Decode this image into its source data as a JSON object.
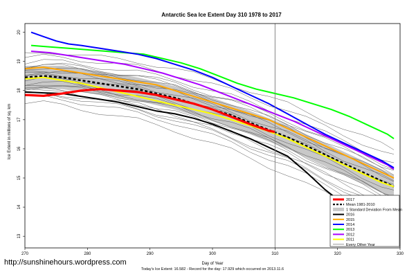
{
  "chart_data": {
    "type": "line",
    "title": "Antarctic Sea Ice Extent Day 310 1978 to 2017",
    "xlabel": "Day of Year",
    "ylabel": "Ice Extent in millions of sq. km",
    "xlim": [
      270,
      330
    ],
    "ylim": [
      12.6,
      20.3
    ],
    "x_ticks": [
      270,
      280,
      290,
      300,
      310,
      320,
      330
    ],
    "y_ticks": [
      13,
      14,
      15,
      16,
      17,
      18,
      19,
      20
    ],
    "current_day": 310,
    "series": [
      {
        "name": "2017",
        "color": "#ff0000",
        "points": [
          [
            270,
            17.85
          ],
          [
            273,
            17.82
          ],
          [
            276,
            17.9
          ],
          [
            279,
            18.0
          ],
          [
            282,
            18.05
          ],
          [
            285,
            18.0
          ],
          [
            288,
            17.95
          ],
          [
            291,
            17.85
          ],
          [
            294,
            17.7
          ],
          [
            297,
            17.55
          ],
          [
            300,
            17.35
          ],
          [
            303,
            17.1
          ],
          [
            306,
            16.85
          ],
          [
            309,
            16.62
          ],
          [
            310,
            16.58
          ]
        ]
      },
      {
        "name": "2016",
        "color": "#000000",
        "points": [
          [
            270,
            17.95
          ],
          [
            273,
            17.92
          ],
          [
            276,
            17.9
          ],
          [
            279,
            17.8
          ],
          [
            282,
            17.7
          ],
          [
            285,
            17.6
          ],
          [
            288,
            17.45
          ],
          [
            291,
            17.3
          ],
          [
            294,
            17.2
          ],
          [
            297,
            17.05
          ],
          [
            300,
            16.85
          ],
          [
            303,
            16.6
          ],
          [
            306,
            16.35
          ],
          [
            309,
            16.05
          ],
          [
            312,
            15.75
          ],
          [
            315,
            15.2
          ],
          [
            318,
            14.6
          ],
          [
            321,
            14.1
          ],
          [
            324,
            13.6
          ],
          [
            327,
            13.2
          ],
          [
            329,
            12.95
          ]
        ]
      },
      {
        "name": "2015",
        "color": "#ffa500",
        "points": [
          [
            270,
            18.75
          ],
          [
            273,
            18.8
          ],
          [
            276,
            18.7
          ],
          [
            279,
            18.6
          ],
          [
            282,
            18.5
          ],
          [
            285,
            18.4
          ],
          [
            288,
            18.3
          ],
          [
            291,
            18.2
          ],
          [
            294,
            18.0
          ],
          [
            297,
            17.8
          ],
          [
            300,
            17.6
          ],
          [
            303,
            17.4
          ],
          [
            306,
            17.2
          ],
          [
            309,
            17.0
          ],
          [
            312,
            16.7
          ],
          [
            315,
            16.4
          ],
          [
            318,
            16.1
          ],
          [
            321,
            15.8
          ],
          [
            324,
            15.5
          ],
          [
            327,
            15.2
          ],
          [
            329,
            15.0
          ]
        ]
      },
      {
        "name": "2014",
        "color": "#0000ff",
        "points": [
          [
            271,
            20.0
          ],
          [
            273,
            19.85
          ],
          [
            275,
            19.7
          ],
          [
            277,
            19.6
          ],
          [
            279,
            19.55
          ],
          [
            282,
            19.45
          ],
          [
            285,
            19.35
          ],
          [
            288,
            19.25
          ],
          [
            291,
            19.1
          ],
          [
            294,
            18.9
          ],
          [
            297,
            18.7
          ],
          [
            300,
            18.45
          ],
          [
            303,
            18.15
          ],
          [
            306,
            17.85
          ],
          [
            309,
            17.55
          ],
          [
            312,
            17.2
          ],
          [
            315,
            16.85
          ],
          [
            318,
            16.5
          ],
          [
            321,
            16.2
          ],
          [
            324,
            15.9
          ],
          [
            327,
            15.6
          ],
          [
            329,
            15.35
          ]
        ]
      },
      {
        "name": "2013",
        "color": "#00ff00",
        "points": [
          [
            271,
            19.55
          ],
          [
            274,
            19.5
          ],
          [
            277,
            19.45
          ],
          [
            280,
            19.4
          ],
          [
            283,
            19.35
          ],
          [
            286,
            19.3
          ],
          [
            289,
            19.25
          ],
          [
            292,
            19.1
          ],
          [
            295,
            18.95
          ],
          [
            298,
            18.75
          ],
          [
            301,
            18.5
          ],
          [
            304,
            18.25
          ],
          [
            307,
            18.05
          ],
          [
            310,
            17.9
          ],
          [
            313,
            17.75
          ],
          [
            316,
            17.55
          ],
          [
            319,
            17.35
          ],
          [
            322,
            17.1
          ],
          [
            325,
            16.8
          ],
          [
            328,
            16.5
          ],
          [
            329,
            16.35
          ]
        ]
      },
      {
        "name": "2012",
        "color": "#aa00ff",
        "points": [
          [
            271,
            19.35
          ],
          [
            274,
            19.3
          ],
          [
            277,
            19.2
          ],
          [
            280,
            19.1
          ],
          [
            283,
            19.0
          ],
          [
            286,
            18.9
          ],
          [
            289,
            18.75
          ],
          [
            292,
            18.6
          ],
          [
            295,
            18.4
          ],
          [
            298,
            18.2
          ],
          [
            301,
            17.95
          ],
          [
            304,
            17.7
          ],
          [
            307,
            17.45
          ],
          [
            310,
            17.2
          ],
          [
            313,
            16.95
          ],
          [
            316,
            16.65
          ],
          [
            319,
            16.35
          ],
          [
            322,
            16.05
          ],
          [
            325,
            15.75
          ],
          [
            328,
            15.45
          ],
          [
            329,
            15.3
          ]
        ]
      },
      {
        "name": "2011",
        "color": "#ffff00",
        "points": [
          [
            270,
            18.4
          ],
          [
            273,
            18.45
          ],
          [
            276,
            18.35
          ],
          [
            279,
            18.25
          ],
          [
            282,
            18.1
          ],
          [
            285,
            17.95
          ],
          [
            288,
            17.8
          ],
          [
            291,
            17.65
          ],
          [
            294,
            17.5
          ],
          [
            297,
            17.35
          ],
          [
            300,
            17.2
          ],
          [
            303,
            17.0
          ],
          [
            306,
            16.8
          ],
          [
            309,
            16.6
          ],
          [
            312,
            16.35
          ],
          [
            315,
            16.05
          ],
          [
            318,
            15.75
          ],
          [
            321,
            15.45
          ],
          [
            324,
            15.15
          ],
          [
            327,
            14.85
          ],
          [
            329,
            14.7
          ]
        ]
      },
      {
        "name": "Mean 1981-2010",
        "color": "#000000",
        "dashed": true,
        "points": [
          [
            270,
            18.45
          ],
          [
            273,
            18.5
          ],
          [
            276,
            18.45
          ],
          [
            279,
            18.35
          ],
          [
            282,
            18.25
          ],
          [
            285,
            18.15
          ],
          [
            288,
            18.05
          ],
          [
            291,
            17.9
          ],
          [
            294,
            17.75
          ],
          [
            297,
            17.55
          ],
          [
            300,
            17.35
          ],
          [
            303,
            17.15
          ],
          [
            306,
            16.9
          ],
          [
            309,
            16.65
          ],
          [
            312,
            16.4
          ],
          [
            315,
            16.1
          ],
          [
            318,
            15.8
          ],
          [
            321,
            15.5
          ],
          [
            324,
            15.2
          ],
          [
            327,
            14.9
          ],
          [
            329,
            14.7
          ]
        ]
      }
    ],
    "std_band": {
      "name": "1 Standard Deviation From Mean",
      "color": "#c8c8c8",
      "upper": [
        [
          270,
          18.85
        ],
        [
          276,
          18.85
        ],
        [
          282,
          18.65
        ],
        [
          288,
          18.45
        ],
        [
          294,
          18.15
        ],
        [
          300,
          17.75
        ],
        [
          306,
          17.3
        ],
        [
          312,
          16.8
        ],
        [
          318,
          16.2
        ],
        [
          324,
          15.6
        ],
        [
          329,
          15.1
        ]
      ],
      "lower": [
        [
          270,
          18.05
        ],
        [
          276,
          18.05
        ],
        [
          282,
          17.85
        ],
        [
          288,
          17.65
        ],
        [
          294,
          17.35
        ],
        [
          300,
          16.95
        ],
        [
          306,
          16.5
        ],
        [
          312,
          16.0
        ],
        [
          318,
          15.4
        ],
        [
          324,
          14.8
        ],
        [
          329,
          14.3
        ]
      ]
    },
    "other_years": {
      "name": "Every Other Year",
      "color": "#555555"
    },
    "legend_placement": "bottom-right",
    "footer": "Today's Ice Extent: 16.582 - Record for the day: 17.929 which occurred on 2013.11.6",
    "watermark": "http://sunshinehours.wordpress.com"
  }
}
